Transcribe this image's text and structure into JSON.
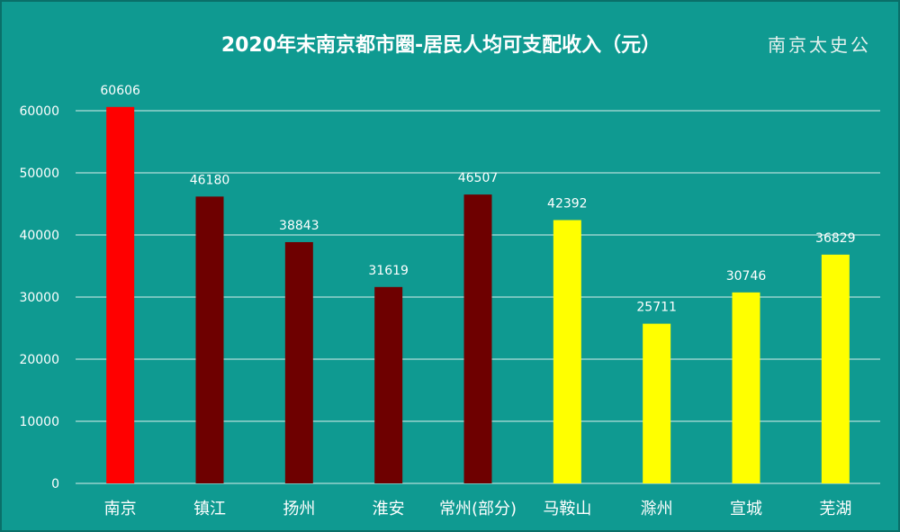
{
  "title": "2020年末南京都市圈-居民人均可支配收入（元）",
  "watermark": "南京太史公",
  "colors": {
    "background": "#0f9a91",
    "grid": "#d9eeec",
    "nanjing": "#ff0000",
    "jiangsu": "#6e0000",
    "anhui": "#ffff00",
    "text": "#ffffff"
  },
  "chart_data": {
    "type": "bar",
    "title": "2020年末南京都市圈-居民人均可支配收入（元）",
    "xlabel": "",
    "ylabel": "",
    "ylim": [
      0,
      60000
    ],
    "yticks": [
      "0",
      "10000",
      "20000",
      "30000",
      "40000",
      "50000",
      "60000"
    ],
    "grid": true,
    "legend": "none",
    "categories": [
      "南京",
      "镇江",
      "扬州",
      "淮安",
      "常州(部分)",
      "马鞍山",
      "滁州",
      "宣城",
      "芜湖"
    ],
    "values": [
      60606,
      46180,
      38843,
      31619,
      46507,
      42392,
      25711,
      30746,
      36829
    ],
    "value_labels": [
      "60606",
      "46180",
      "38843",
      "31619",
      "46507",
      "42392",
      "25711",
      "30746",
      "36829"
    ],
    "bar_colors": [
      "#ff0000",
      "#6e0000",
      "#6e0000",
      "#6e0000",
      "#6e0000",
      "#ffff00",
      "#ffff00",
      "#ffff00",
      "#ffff00"
    ]
  }
}
